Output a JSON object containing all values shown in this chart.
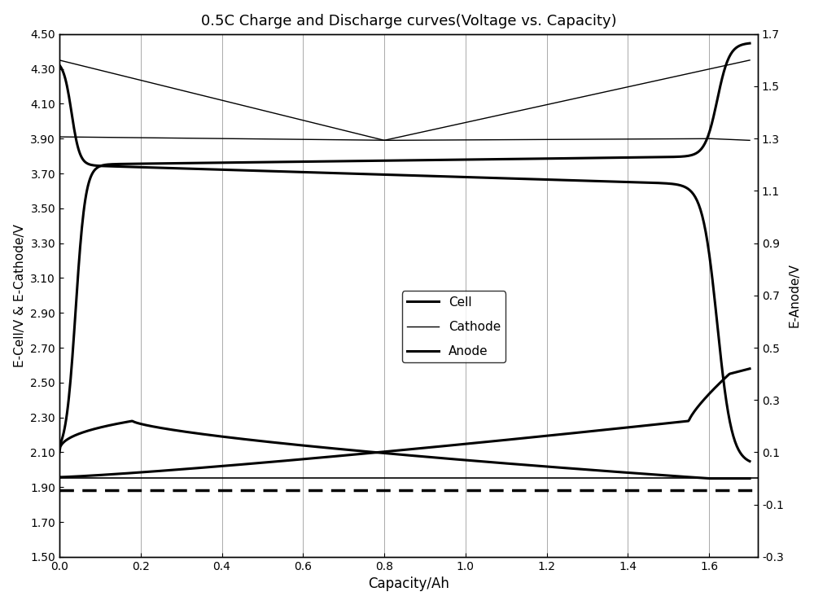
{
  "title": "0.5C Charge and Discharge curves(Voltage vs. Capacity)",
  "xlabel": "Capacity/Ah",
  "ylabel_left": "E-Cell/V & E-Cathode/V",
  "ylabel_right": "E-Anode/V",
  "ylim_left": [
    1.5,
    4.5
  ],
  "ylim_right": [
    -0.3,
    1.7
  ],
  "xlim": [
    0.0,
    1.72
  ],
  "yticks_left": [
    1.5,
    1.7,
    1.9,
    2.1,
    2.3,
    2.5,
    2.7,
    2.9,
    3.1,
    3.3,
    3.5,
    3.7,
    3.9,
    4.1,
    4.3,
    4.5
  ],
  "yticks_right": [
    -0.3,
    -0.1,
    0.1,
    0.3,
    0.5,
    0.7,
    0.9,
    1.1,
    1.3,
    1.5,
    1.7
  ],
  "xticks": [
    0.0,
    0.2,
    0.4,
    0.6,
    0.8,
    1.0,
    1.2,
    1.4,
    1.6
  ],
  "grid_x": [
    0.0,
    0.2,
    0.4,
    0.6,
    0.8,
    1.0,
    1.2,
    1.4,
    1.6
  ],
  "dashed_line_y": 1.885,
  "solid_line_y": 1.955,
  "background": "#ffffff",
  "line_color": "#000000"
}
